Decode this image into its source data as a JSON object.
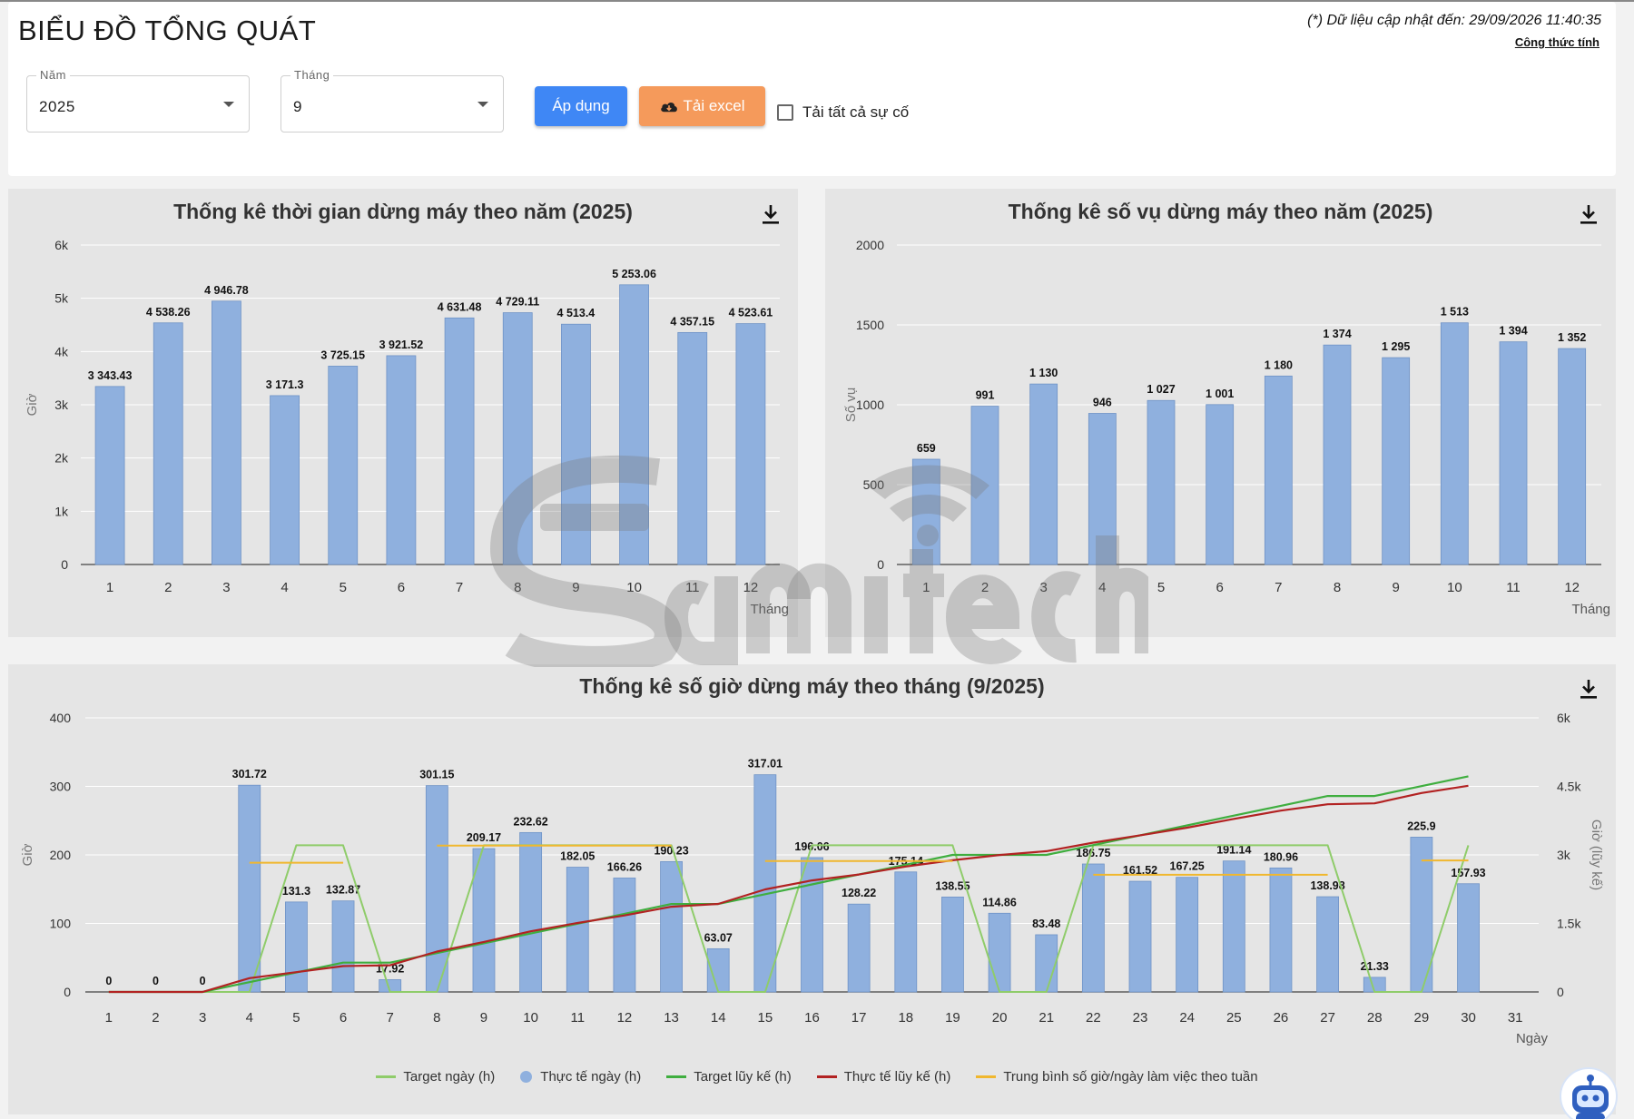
{
  "header": {
    "title": "BIỂU ĐỒ TỔNG QUÁT",
    "update_note": "(*) Dữ liệu cập nhật đến: 29/09/2026 11:40:35",
    "formula_link": "Công thức tính"
  },
  "filters": {
    "year": {
      "label": "Năm",
      "value": "2025"
    },
    "month": {
      "label": "Tháng",
      "value": "9"
    },
    "apply_label": "Áp dụng",
    "excel_label": "Tải excel",
    "all_incidents_label": "Tải tất cả sự cố"
  },
  "colors": {
    "bar": "#8fb0de",
    "target_day": "#8fcc6a",
    "target_cum": "#3fae3f",
    "actual_cum": "#b22222",
    "weekly_avg": "#f0b72e"
  },
  "icons": {
    "download": "download-icon",
    "cloud": "cloud-download-icon",
    "bot": "robot-assistant-icon"
  },
  "legend": [
    {
      "label": "Target ngày (h)",
      "kind": "line",
      "color": "#8fcc6a"
    },
    {
      "label": "Thực tế ngày (h)",
      "kind": "dot",
      "color": "#8fb0de"
    },
    {
      "label": "Target lũy kế (h)",
      "kind": "line",
      "color": "#3fae3f"
    },
    {
      "label": "Thực tế lũy kế (h)",
      "kind": "line",
      "color": "#b22222"
    },
    {
      "label": "Trung bình số giờ/ngày làm việc theo tuần",
      "kind": "line",
      "color": "#f0b72e"
    }
  ],
  "chart_data": [
    {
      "type": "bar",
      "title": "Thống kê thời gian dừng máy theo năm (2025)",
      "xlabel": "Tháng",
      "ylabel": "Giờ",
      "ylim": [
        0,
        6000
      ],
      "yticks": [
        "0",
        "1k",
        "2k",
        "3k",
        "4k",
        "5k",
        "6k"
      ],
      "categories": [
        "1",
        "2",
        "3",
        "4",
        "5",
        "6",
        "7",
        "8",
        "9",
        "10",
        "11",
        "12"
      ],
      "values": [
        3343.43,
        4538.26,
        4946.78,
        3171.3,
        3725.15,
        3921.52,
        4631.48,
        4729.11,
        4513.4,
        5253.06,
        4357.15,
        4523.61
      ],
      "labels": [
        "3 343.43",
        "4 538.26",
        "4 946.78",
        "3 171.3",
        "3 725.15",
        "3 921.52",
        "4 631.48",
        "4 729.11",
        "4 513.4",
        "5 253.06",
        "4 357.15",
        "4 523.61"
      ],
      "grid": "horizontal"
    },
    {
      "type": "bar",
      "title": "Thống kê số vụ dừng máy theo năm (2025)",
      "xlabel": "Tháng",
      "ylabel": "Số vụ",
      "ylim": [
        0,
        2000
      ],
      "yticks": [
        "0",
        "500",
        "1000",
        "1500",
        "2000"
      ],
      "categories": [
        "1",
        "2",
        "3",
        "4",
        "5",
        "6",
        "7",
        "8",
        "9",
        "10",
        "11",
        "12"
      ],
      "values": [
        659,
        991,
        1130,
        946,
        1027,
        1001,
        1180,
        1374,
        1295,
        1513,
        1394,
        1352
      ],
      "labels": [
        "659",
        "991",
        "1 130",
        "946",
        "1 027",
        "1 001",
        "1 180",
        "1 374",
        "1 295",
        "1 513",
        "1 394",
        "1 352"
      ],
      "grid": "horizontal"
    },
    {
      "type": "bar",
      "title": "Thống kê số giờ dừng máy theo tháng (9/2025)",
      "xlabel": "Ngày",
      "ylabel": "Giờ",
      "ylabel_right": "Giờ (lũy kế)",
      "ylim": [
        0,
        400
      ],
      "ylim_right": [
        0,
        6000
      ],
      "yticks": [
        "0",
        "100",
        "200",
        "300",
        "400"
      ],
      "yticks_right": [
        "0",
        "1.5k",
        "3k",
        "4.5k",
        "6k"
      ],
      "categories": [
        "1",
        "2",
        "3",
        "4",
        "5",
        "6",
        "7",
        "8",
        "9",
        "10",
        "11",
        "12",
        "13",
        "14",
        "15",
        "16",
        "17",
        "18",
        "19",
        "20",
        "21",
        "22",
        "23",
        "24",
        "25",
        "26",
        "27",
        "28",
        "29",
        "30",
        "31"
      ],
      "series": [
        {
          "name": "Thực tế ngày (h)",
          "type": "bar",
          "values": [
            0,
            0,
            0,
            301.72,
            131.3,
            132.87,
            17.92,
            301.15,
            209.17,
            232.62,
            182.05,
            166.26,
            190.23,
            63.07,
            317.01,
            196.06,
            128.22,
            175.14,
            138.55,
            114.86,
            83.48,
            186.75,
            161.52,
            167.25,
            191.14,
            180.96,
            138.98,
            21.33,
            225.9,
            157.93,
            null
          ],
          "labels": [
            "0",
            "0",
            "0",
            "301.72",
            "131.3",
            "132.87",
            "17.92",
            "301.15",
            "209.17",
            "232.62",
            "182.05",
            "166.26",
            "190.23",
            "63.07",
            "317.01",
            "196.06",
            "128.22",
            "175.14",
            "138.55",
            "114.86",
            "83.48",
            "186.75",
            "161.52",
            "167.25",
            "191.14",
            "180.96",
            "138.98",
            "21.33",
            "225.9",
            "157.93",
            ""
          ]
        },
        {
          "name": "Target ngày (h)",
          "type": "line",
          "axis": "left",
          "values": [
            0,
            0,
            0,
            0,
            214,
            214,
            0,
            0,
            214,
            214,
            214,
            214,
            214,
            0,
            0,
            214,
            214,
            214,
            214,
            0,
            0,
            214,
            214,
            214,
            214,
            214,
            214,
            0,
            0,
            214,
            null
          ]
        },
        {
          "name": "Target lũy kế (h)",
          "type": "line",
          "axis": "right",
          "values": [
            0,
            0,
            0,
            214,
            428,
            642,
            642,
            850,
            1065,
            1280,
            1495,
            1710,
            1925,
            1925,
            2140,
            2355,
            2570,
            2785,
            3000,
            3000,
            3000,
            3215,
            3430,
            3645,
            3860,
            4075,
            4290,
            4290,
            4505,
            4720,
            null
          ]
        },
        {
          "name": "Thực tế lũy kế (h)",
          "type": "line",
          "axis": "right",
          "values": [
            0,
            0,
            0,
            302,
            433,
            566,
            584,
            885,
            1094,
            1327,
            1509,
            1675,
            1865,
            1928,
            2245,
            2441,
            2570,
            2745,
            2883,
            2998,
            3082,
            3268,
            3430,
            3597,
            3788,
            3969,
            4108,
            4129,
            4355,
            4513,
            null
          ]
        },
        {
          "name": "Trung bình số giờ/ngày làm việc theo tuần",
          "type": "segments",
          "axis": "left",
          "segments": [
            {
              "from": 4,
              "to": 6,
              "value": 188.6
            },
            {
              "from": 8,
              "to": 13,
              "value": 213.6
            },
            {
              "from": 15,
              "to": 19,
              "value": 191.0
            },
            {
              "from": 22,
              "to": 27,
              "value": 171.1
            },
            {
              "from": 29,
              "to": 30,
              "value": 191.9
            }
          ]
        }
      ]
    }
  ]
}
